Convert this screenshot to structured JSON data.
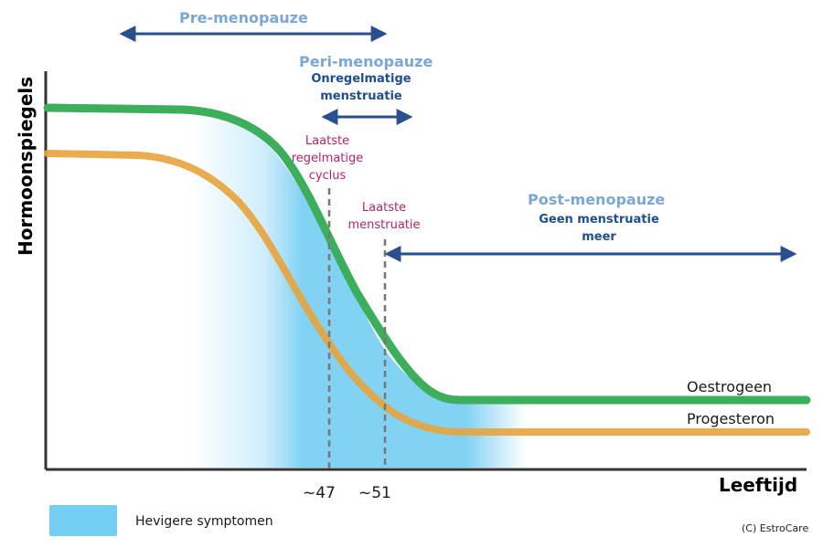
{
  "y_axis_label": "Hormoonspiegels",
  "x_axis_label": "Leeftijd",
  "phases": {
    "pre": {
      "title": "Pre-menopauze"
    },
    "peri": {
      "title": "Peri-menopauze",
      "subtitle_line1": "Onregelmatige",
      "subtitle_line2": "menstruatie"
    },
    "post": {
      "title": "Post-menopauze",
      "subtitle_line1": "Geen menstruatie",
      "subtitle_line2": "meer"
    }
  },
  "markers": {
    "m47": {
      "label_line1": "Laatste",
      "label_line2": "regelmatige",
      "label_line3": "cyclus",
      "tick": "~47"
    },
    "m51": {
      "label_line1": "Laatste",
      "label_line2": "menstruatie",
      "tick": "~51"
    }
  },
  "curves": {
    "oestrogeen": {
      "name": "Oestrogeen",
      "color": "#3dae5c"
    },
    "progesteron": {
      "name": "Progesteron",
      "color": "#e8a33c"
    }
  },
  "legend": {
    "label": "Hevigere symptomen",
    "color": "#74cdf3"
  },
  "credit": "(C) EstroCare",
  "colors": {
    "arrow": "#2a4f8f",
    "marker_line": "#777777",
    "axis": "#333333"
  }
}
